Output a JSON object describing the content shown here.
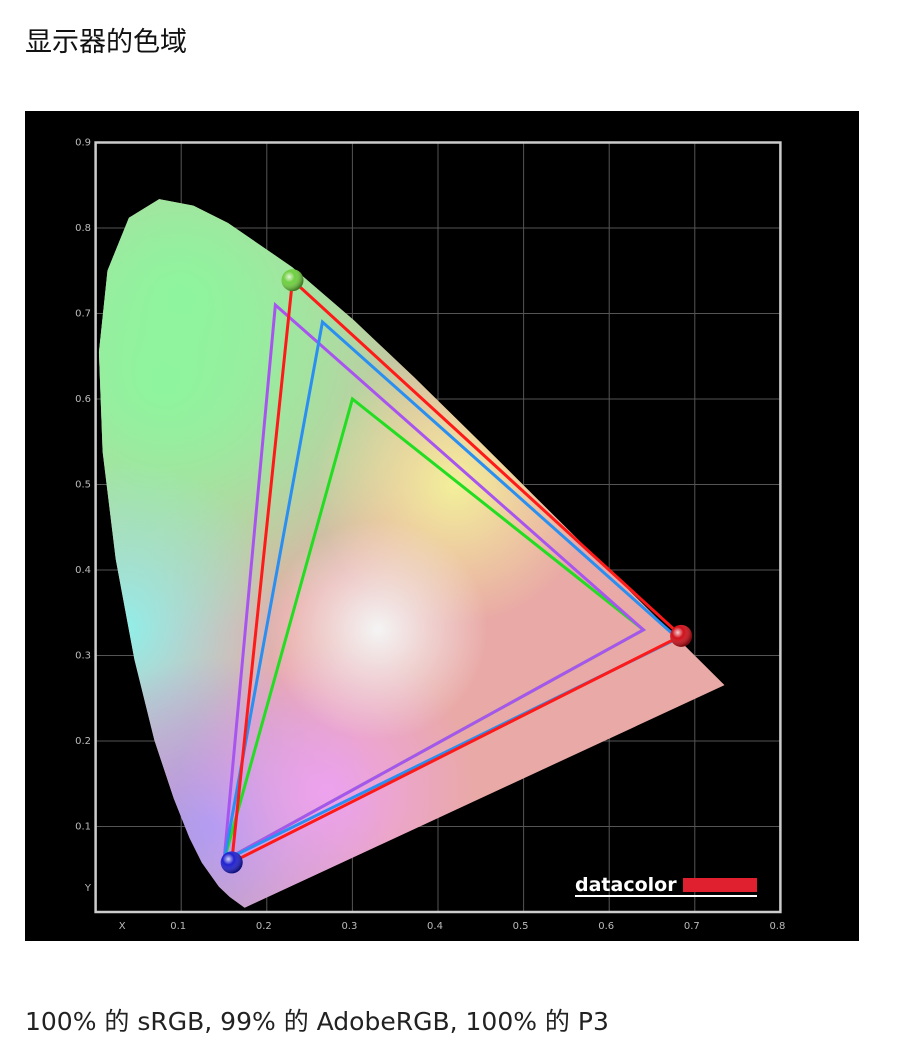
{
  "page": {
    "title": "显示器的色域",
    "caption": "100% 的 sRGB, 99% 的 AdobeRGB, 100% 的 P3"
  },
  "chart_data": {
    "type": "scatter",
    "title": "",
    "xlabel": "X",
    "ylabel": "Y",
    "xlim": [
      0,
      0.8
    ],
    "ylim": [
      0,
      0.9
    ],
    "x_ticks": [
      "0.1",
      "0.2",
      "0.3",
      "0.4",
      "0.5",
      "0.6",
      "0.7",
      "0.8"
    ],
    "y_ticks": [
      "0.1",
      "0.2",
      "0.3",
      "0.4",
      "0.5",
      "0.6",
      "0.7",
      "0.8",
      "0.9"
    ],
    "grid": true,
    "background": "#000000",
    "logo": "datacolor",
    "spectral_locus": [
      [
        0.1741,
        0.005
      ],
      [
        0.1566,
        0.0177
      ],
      [
        0.144,
        0.0297
      ],
      [
        0.1241,
        0.0578
      ],
      [
        0.1096,
        0.0868
      ],
      [
        0.0913,
        0.1327
      ],
      [
        0.0687,
        0.2007
      ],
      [
        0.0454,
        0.295
      ],
      [
        0.0235,
        0.4127
      ],
      [
        0.0082,
        0.5384
      ],
      [
        0.0039,
        0.6548
      ],
      [
        0.0139,
        0.7502
      ],
      [
        0.0389,
        0.812
      ],
      [
        0.0743,
        0.8338
      ],
      [
        0.1142,
        0.8262
      ],
      [
        0.1547,
        0.8059
      ],
      [
        0.2296,
        0.7543
      ],
      [
        0.3016,
        0.6923
      ],
      [
        0.3731,
        0.6245
      ],
      [
        0.4441,
        0.5547
      ],
      [
        0.5125,
        0.4866
      ],
      [
        0.5752,
        0.4242
      ],
      [
        0.627,
        0.3725
      ],
      [
        0.6915,
        0.3083
      ],
      [
        0.7347,
        0.2653
      ]
    ],
    "series": [
      {
        "color": "#22dd22",
        "points": [
          [
            0.64,
            0.33
          ],
          [
            0.3,
            0.6
          ],
          [
            0.15,
            0.06
          ]
        ]
      },
      {
        "color": "#a855f0",
        "points": [
          [
            0.64,
            0.33
          ],
          [
            0.21,
            0.71
          ],
          [
            0.15,
            0.06
          ]
        ]
      },
      {
        "color": "#2a8ff0",
        "points": [
          [
            0.68,
            0.32
          ],
          [
            0.265,
            0.69
          ],
          [
            0.15,
            0.06
          ]
        ]
      },
      {
        "color": "#ff1a1a",
        "points": [
          [
            0.684,
            0.323
          ],
          [
            0.23,
            0.739
          ],
          [
            0.159,
            0.058
          ]
        ]
      }
    ],
    "markers": [
      {
        "color": "#d0101a",
        "point": [
          0.684,
          0.323
        ]
      },
      {
        "color": "#6fcf40",
        "point": [
          0.23,
          0.739
        ]
      },
      {
        "color": "#2020d0",
        "point": [
          0.159,
          0.058
        ]
      }
    ]
  }
}
